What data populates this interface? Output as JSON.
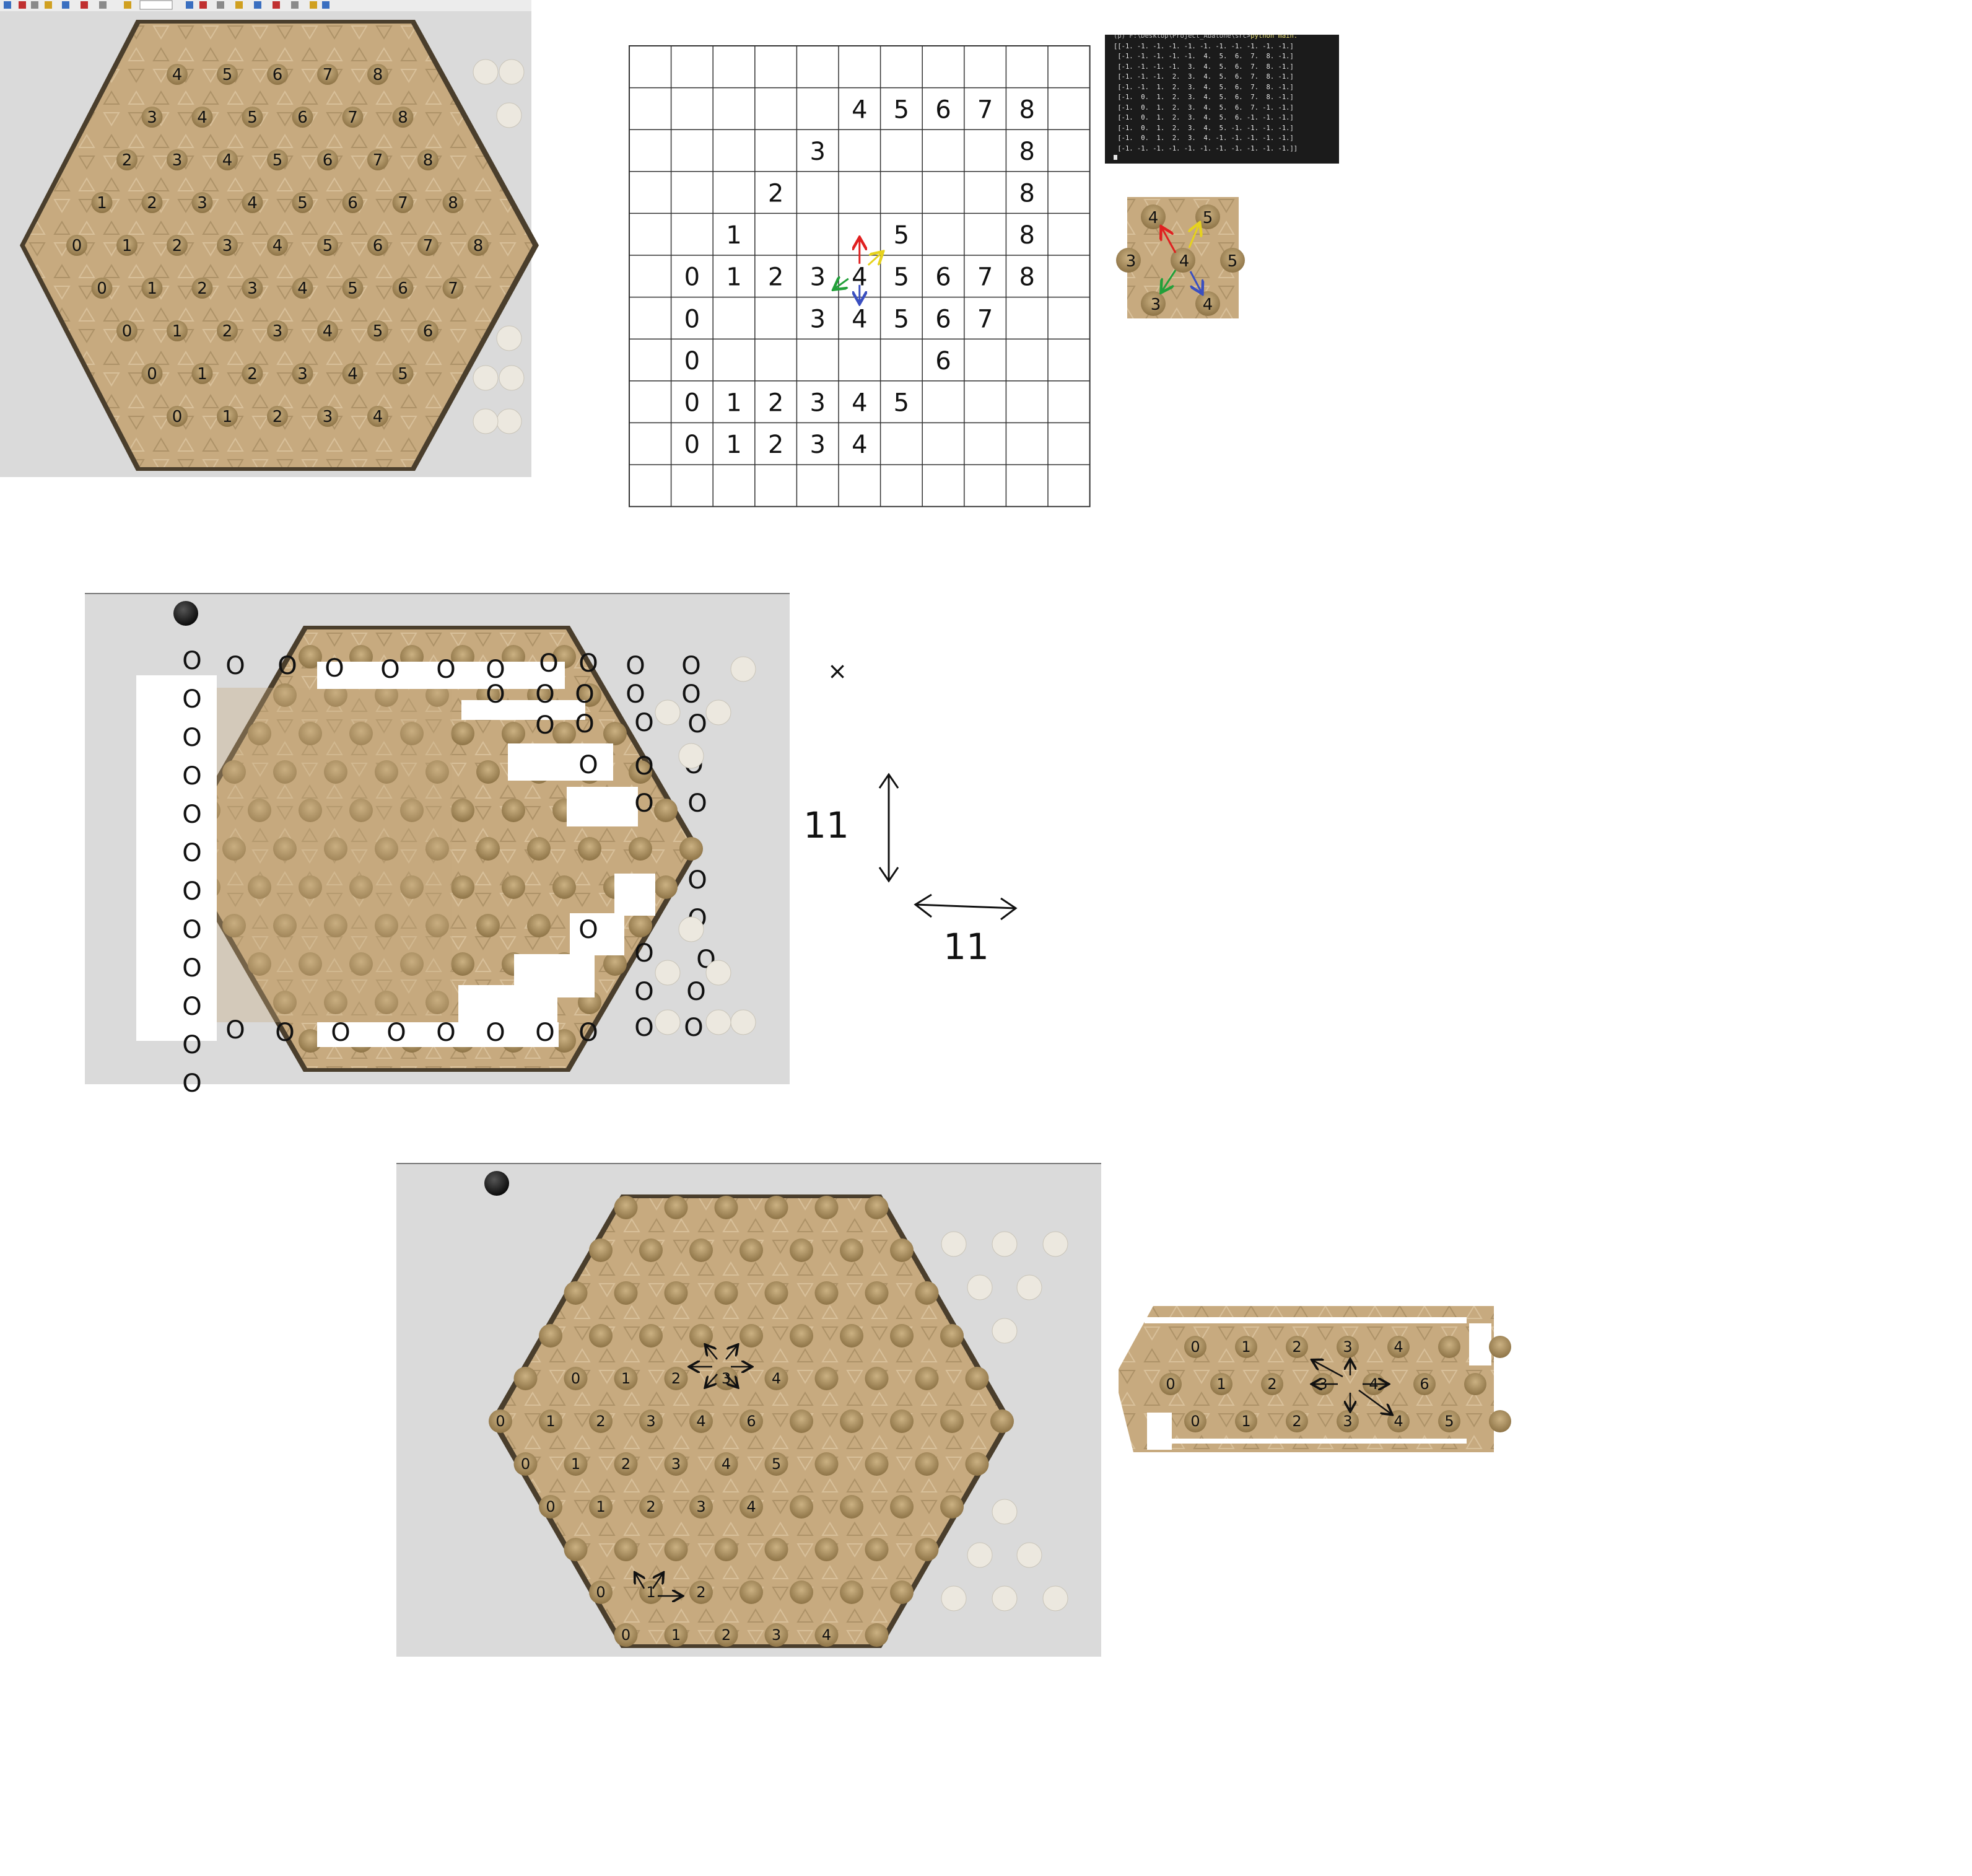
{
  "panel1_board": {
    "rows": [
      [
        "4",
        "5",
        "6",
        "7",
        "8"
      ],
      [
        "3",
        "4",
        "5",
        "6",
        "7",
        "8"
      ],
      [
        "2",
        "3",
        "4",
        "5",
        "6",
        "7",
        "8"
      ],
      [
        "1",
        "2",
        "3",
        "4",
        "5",
        "6",
        "7",
        "8"
      ],
      [
        "0",
        "1",
        "2",
        "3",
        "4",
        "5",
        "6",
        "7",
        "8"
      ],
      [
        "0",
        "1",
        "2",
        "3",
        "4",
        "5",
        "6",
        "7"
      ],
      [
        "0",
        "1",
        "2",
        "3",
        "4",
        "5",
        "6"
      ],
      [
        "0",
        "1",
        "2",
        "3",
        "4",
        "5"
      ],
      [
        "0",
        "1",
        "2",
        "3",
        "4"
      ]
    ]
  },
  "grid_sketch": {
    "rows": [
      [
        "",
        "",
        "",
        "",
        "",
        "",
        "",
        "",
        "",
        "",
        ""
      ],
      [
        "",
        "",
        "",
        "",
        "",
        "4",
        "5",
        "6",
        "7",
        "8",
        ""
      ],
      [
        "",
        "",
        "",
        "",
        "3",
        "",
        "",
        "",
        "",
        "8",
        ""
      ],
      [
        "",
        "",
        "",
        "2",
        "",
        "",
        "",
        "",
        "",
        "8",
        ""
      ],
      [
        "",
        "",
        "1",
        "",
        "",
        "",
        "5",
        "",
        "",
        "8",
        ""
      ],
      [
        "",
        "0",
        "1",
        "2",
        "3",
        "4",
        "5",
        "6",
        "7",
        "8",
        ""
      ],
      [
        "",
        "0",
        "",
        "",
        "3",
        "4",
        "5",
        "6",
        "7",
        "",
        ""
      ],
      [
        "",
        "0",
        "",
        "",
        "",
        "",
        "",
        "6",
        "",
        "",
        ""
      ],
      [
        "",
        "0",
        "1",
        "2",
        "3",
        "4",
        "5",
        "",
        "",
        "",
        ""
      ],
      [
        "",
        "0",
        "1",
        "2",
        "3",
        "4",
        "",
        "",
        "",
        "",
        ""
      ],
      [
        "",
        "",
        "",
        "",
        "",
        "",
        "",
        "",
        "",
        "",
        ""
      ]
    ]
  },
  "terminal": {
    "header": "(p) F:\\Desktop\\Project_Abalone\\src>",
    "header_cmd": "python main.",
    "lines": [
      "[[-1. -1. -1. -1. -1. -1. -1. -1. -1. -1. -1.]",
      " [-1. -1. -1. -1. -1.  4.  5.  6.  7.  8. -1.]",
      " [-1. -1. -1. -1.  3.  4.  5.  6.  7.  8. -1.]",
      " [-1. -1. -1.  2.  3.  4.  5.  6.  7.  8. -1.]",
      " [-1. -1.  1.  2.  3.  4.  5.  6.  7.  8. -1.]",
      " [-1.  0.  1.  2.  3.  4.  5.  6.  7.  8. -1.]",
      " [-1.  0.  1.  2.  3.  4.  5.  6.  7. -1. -1.]",
      " [-1.  0.  1.  2.  3.  4.  5.  6. -1. -1. -1.]",
      " [-1.  0.  1.  2.  3.  4.  5. -1. -1. -1. -1.]",
      " [-1.  0.  1.  2.  3.  4. -1. -1. -1. -1. -1.]",
      " [-1. -1. -1. -1. -1. -1. -1. -1. -1. -1. -1.]]"
    ]
  },
  "hex_neighbors": {
    "center": "4",
    "top_left": "4",
    "top_right": "5",
    "left": "3",
    "right": "5",
    "bottom_left": "3",
    "bottom_right": "4"
  },
  "panel2": {
    "cross_mark": "×",
    "dim_vertical": "11",
    "dim_horizontal": "11",
    "circle_label": "O"
  },
  "panel3": {
    "row1": [
      "0",
      "1",
      "2",
      "3",
      "4"
    ],
    "row2": [
      "0",
      "1",
      "2",
      "3",
      "4",
      "6"
    ],
    "row3": [
      "0",
      "1",
      "2",
      "3",
      "4",
      "5"
    ],
    "row4": [
      "0",
      "1",
      "2",
      "3",
      "4"
    ],
    "row5": [
      "0",
      "1",
      "2"
    ],
    "row6": [
      "0",
      "1",
      "2",
      "3",
      "4"
    ]
  },
  "panel4": {
    "row1": [
      "0",
      "1",
      "2",
      "3",
      "4"
    ],
    "row2": [
      "0",
      "1",
      "2",
      "3",
      "4",
      "6"
    ],
    "row3": [
      "0",
      "1",
      "2",
      "3",
      "4",
      "5"
    ]
  },
  "colors": {
    "board": "#c7aa7f",
    "board_edge": "#4a3e2c",
    "hole": "#b59a6c",
    "panel_bg": "#dadada",
    "arrow_red": "#e02020",
    "arrow_yellow": "#e6d21e",
    "arrow_green": "#22a03a",
    "arrow_blue": "#3a4fc0"
  }
}
